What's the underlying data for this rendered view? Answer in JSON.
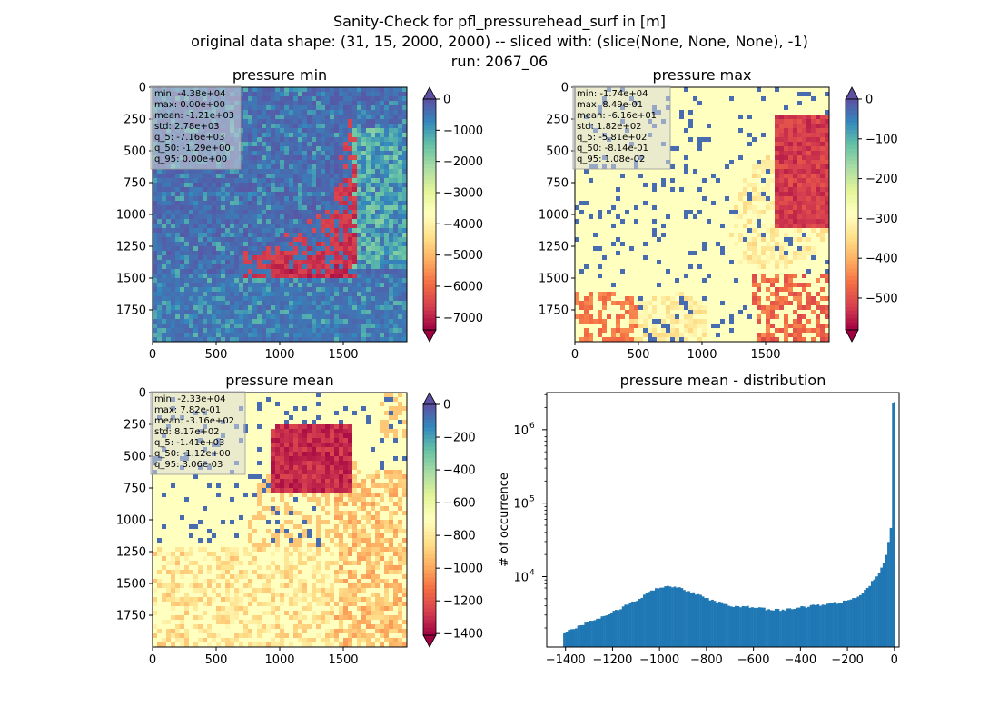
{
  "figure": {
    "title_lines": [
      "Sanity-Check for pfl_pressurehead_surf in [m]",
      "original data shape: (31, 15, 2000, 2000) -- sliced with: (slice(None, None, None), -1)",
      "run: 2067_06"
    ]
  },
  "colors": {
    "colormap": "Spectral",
    "ramp": [
      "#9e0142",
      "#d53e4f",
      "#f46d43",
      "#fdae61",
      "#fee08b",
      "#ffffbf",
      "#e6f598",
      "#abdda4",
      "#66c2a5",
      "#3288bd",
      "#5e4fa2"
    ],
    "hist_bar": "#1f77b4",
    "stats_box_bg": "#d9d9d9"
  },
  "chart_data": [
    {
      "type": "heatmap",
      "title": "pressure min",
      "x_range": [
        0,
        2000
      ],
      "y_range": [
        0,
        2000
      ],
      "x_ticks": [
        "0",
        "500",
        "1000",
        "1500"
      ],
      "y_ticks": [
        "0",
        "250",
        "500",
        "750",
        "1000",
        "1250",
        "1500",
        "1750"
      ],
      "colorbar": {
        "min": -7400,
        "max": 0,
        "extend": "both",
        "ticks": [
          "0",
          "−1000",
          "−2000",
          "−3000",
          "−4000",
          "−5000",
          "−6000",
          "−7000"
        ],
        "tick_values": [
          0,
          -1000,
          -2000,
          -3000,
          -4000,
          -5000,
          -6000,
          -7000
        ]
      },
      "stats": [
        "min: -4.38e+04",
        "max: 0.00e+00",
        "mean: -1.21e+03",
        "std: 2.78e+03",
        "q_5: -7.16e+03",
        "q_50: -1.29e+00",
        "q_95: 0.00e+00"
      ]
    },
    {
      "type": "heatmap",
      "title": "pressure max",
      "x_range": [
        0,
        2000
      ],
      "y_range": [
        0,
        2000
      ],
      "x_ticks": [
        "0",
        "500",
        "1000",
        "1500"
      ],
      "y_ticks": [
        "0",
        "250",
        "500",
        "750",
        "1000",
        "1250",
        "1500",
        "1750"
      ],
      "colorbar": {
        "min": -580,
        "max": 0,
        "extend": "both",
        "ticks": [
          "0",
          "−100",
          "−200",
          "−300",
          "−400",
          "−500"
        ],
        "tick_values": [
          0,
          -100,
          -200,
          -300,
          -400,
          -500
        ]
      },
      "stats": [
        "min: -1.74e+04",
        "max: 8.49e-01",
        "mean: -6.16e+01",
        "std: 1.82e+02",
        "q_5: -5.81e+02",
        "q_50: -8.14e-01",
        "q_95: 1.08e-02"
      ]
    },
    {
      "type": "heatmap",
      "title": "pressure mean",
      "x_range": [
        0,
        2000
      ],
      "y_range": [
        0,
        2000
      ],
      "x_ticks": [
        "0",
        "500",
        "1000",
        "1500"
      ],
      "y_ticks": [
        "0",
        "250",
        "500",
        "750",
        "1000",
        "1250",
        "1500",
        "1750"
      ],
      "colorbar": {
        "min": -1410,
        "max": 0,
        "extend": "both",
        "ticks": [
          "0",
          "−200",
          "−400",
          "−600",
          "−800",
          "−1000",
          "−1200",
          "−1400"
        ],
        "tick_values": [
          0,
          -200,
          -400,
          -600,
          -800,
          -1000,
          -1200,
          -1400
        ]
      },
      "stats": [
        "min: -2.33e+04",
        "max: 7.82e-01",
        "mean: -3.16e+02",
        "std: 8.17e+02",
        "q_5: -1.41e+03",
        "q_50: -1.12e+00",
        "q_95: 3.06e-03"
      ]
    },
    {
      "type": "bar",
      "subtype": "histogram",
      "title": "pressure mean - distribution",
      "ylabel": "# of occurrence",
      "xlabel": "",
      "ylog": true,
      "xlim": [
        -1480,
        20
      ],
      "ylim": [
        1100,
        3200000
      ],
      "x_ticks": [
        "−1400",
        "−1200",
        "−1000",
        "−800",
        "−600",
        "−400",
        "−200",
        "0"
      ],
      "x_tick_values": [
        -1400,
        -1200,
        -1000,
        -800,
        -600,
        -400,
        -200,
        0
      ],
      "y_ticks": [
        {
          "base": "10",
          "exp": "4",
          "value": 10000
        },
        {
          "base": "10",
          "exp": "5",
          "value": 100000
        },
        {
          "base": "10",
          "exp": "6",
          "value": 1000000
        }
      ],
      "bin_width": 10,
      "profile_x": [
        -1410,
        -1300,
        -1200,
        -1100,
        -1050,
        -1000,
        -950,
        -900,
        -800,
        -700,
        -600,
        -500,
        -400,
        -300,
        -250,
        -200,
        -150,
        -100,
        -60,
        -40,
        -20,
        -10,
        -5
      ],
      "profile_y": [
        1700,
        2400,
        3300,
        4700,
        6000,
        7200,
        7500,
        6800,
        5100,
        4000,
        3800,
        3500,
        3800,
        4200,
        4400,
        4600,
        5500,
        8000,
        12000,
        17000,
        35000,
        60000,
        2400000
      ]
    }
  ]
}
